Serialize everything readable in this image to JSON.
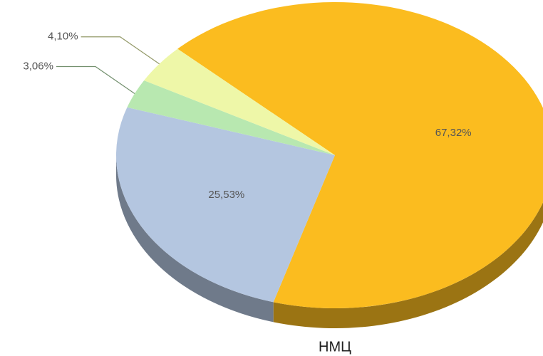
{
  "chart_data": {
    "type": "pie",
    "title": "НМЦ",
    "values": [
      67.32,
      25.53,
      3.06,
      4.1
    ],
    "value_labels": [
      "67,32%",
      "25,53%",
      "3,06%",
      "4,10%"
    ],
    "colors": [
      "#fbbc1f",
      "#b4c6e0",
      "#b8e8b0",
      "#eef7a8"
    ]
  }
}
